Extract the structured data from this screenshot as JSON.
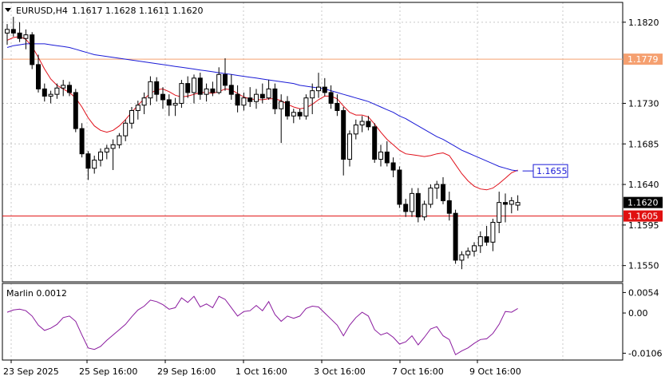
{
  "header": {
    "symbol_label": "EURUSD,H4",
    "ohlc": "1.1617 1.1628 1.1611 1.1620"
  },
  "indicator": {
    "label": "Marlin 0.0012"
  },
  "colors": {
    "candle": "#000000",
    "ma_fast": "#e0101a",
    "ma_slow": "#1a1ad6",
    "level_orange": "#f5a070",
    "level_red": "#e01010",
    "oscillator": "#8a1a9e",
    "grid": "#c8c8c8"
  },
  "chart_data": [
    {
      "type": "candlestick",
      "title": "EURUSD,H4",
      "ylim": [
        1.1532,
        1.1842
      ],
      "y_ticks": [
        "1.1820",
        "1.1730",
        "1.1685",
        "1.1640",
        "1.1595",
        "1.1550"
      ],
      "x_ticks": [
        "23 Sep 2025",
        "25 Sep 16:00",
        "29 Sep 16:00",
        "1 Oct 16:00",
        "3 Oct 16:00",
        "7 Oct 16:00",
        "9 Oct 16:00"
      ],
      "levels": [
        {
          "label": "1.1779",
          "value": 1.1779,
          "color": "#f5a070"
        },
        {
          "label": "1.1605",
          "value": 1.1605,
          "color": "#e01010"
        }
      ],
      "price_tags": [
        {
          "label": "1.1620",
          "value": 1.162,
          "style": "dark"
        },
        {
          "label": "1.1655",
          "value": 1.1655,
          "style": "blue-box"
        }
      ],
      "candles": [
        [
          1.1808,
          1.1818,
          1.1795,
          1.1812
        ],
        [
          1.1812,
          1.1826,
          1.1804,
          1.1808
        ],
        [
          1.1808,
          1.182,
          1.1798,
          1.1802
        ],
        [
          1.1802,
          1.1812,
          1.179,
          1.1806
        ],
        [
          1.1806,
          1.1809,
          1.1768,
          1.1773
        ],
        [
          1.1773,
          1.1784,
          1.1742,
          1.1746
        ],
        [
          1.1746,
          1.1752,
          1.1732,
          1.1738
        ],
        [
          1.1738,
          1.1744,
          1.173,
          1.174
        ],
        [
          1.174,
          1.1752,
          1.1735,
          1.1747
        ],
        [
          1.1747,
          1.1756,
          1.1738,
          1.175
        ],
        [
          1.175,
          1.1754,
          1.1738,
          1.1742
        ],
        [
          1.1742,
          1.1746,
          1.1698,
          1.1702
        ],
        [
          1.1702,
          1.1708,
          1.167,
          1.1674
        ],
        [
          1.1674,
          1.1677,
          1.1645,
          1.1658
        ],
        [
          1.1658,
          1.1672,
          1.1652,
          1.1667
        ],
        [
          1.1667,
          1.168,
          1.166,
          1.1676
        ],
        [
          1.1676,
          1.1684,
          1.1668,
          1.168
        ],
        [
          1.168,
          1.169,
          1.1656,
          1.1684
        ],
        [
          1.1684,
          1.1697,
          1.168,
          1.1694
        ],
        [
          1.1694,
          1.1712,
          1.1688,
          1.1708
        ],
        [
          1.1708,
          1.1726,
          1.1702,
          1.1722
        ],
        [
          1.1722,
          1.1733,
          1.1712,
          1.1728
        ],
        [
          1.1728,
          1.1742,
          1.1718,
          1.1736
        ],
        [
          1.1736,
          1.176,
          1.1728,
          1.1754
        ],
        [
          1.1754,
          1.1759,
          1.1732,
          1.174
        ],
        [
          1.174,
          1.1748,
          1.1724,
          1.1734
        ],
        [
          1.1734,
          1.174,
          1.1716,
          1.1728
        ],
        [
          1.1728,
          1.1736,
          1.1716,
          1.173
        ],
        [
          1.173,
          1.1756,
          1.1725,
          1.1752
        ],
        [
          1.1752,
          1.176,
          1.1736,
          1.1742
        ],
        [
          1.1742,
          1.1762,
          1.173,
          1.1758
        ],
        [
          1.1758,
          1.1764,
          1.1734,
          1.174
        ],
        [
          1.174,
          1.1752,
          1.1732,
          1.1746
        ],
        [
          1.1746,
          1.1754,
          1.1738,
          1.1742
        ],
        [
          1.1742,
          1.177,
          1.174,
          1.1762
        ],
        [
          1.1762,
          1.178,
          1.1744,
          1.175
        ],
        [
          1.175,
          1.1762,
          1.1734,
          1.174
        ],
        [
          1.174,
          1.175,
          1.172,
          1.1728
        ],
        [
          1.1728,
          1.1742,
          1.1722,
          1.1736
        ],
        [
          1.1736,
          1.1748,
          1.1726,
          1.1732
        ],
        [
          1.1732,
          1.1746,
          1.1724,
          1.174
        ],
        [
          1.174,
          1.1752,
          1.173,
          1.1736
        ],
        [
          1.1736,
          1.1756,
          1.1734,
          1.1746
        ],
        [
          1.1746,
          1.1752,
          1.1718,
          1.1724
        ],
        [
          1.1724,
          1.174,
          1.1686,
          1.1732
        ],
        [
          1.1732,
          1.1738,
          1.1712,
          1.1716
        ],
        [
          1.1716,
          1.1724,
          1.1708,
          1.172
        ],
        [
          1.172,
          1.1724,
          1.1712,
          1.1716
        ],
        [
          1.1716,
          1.174,
          1.1712,
          1.1736
        ],
        [
          1.1736,
          1.1752,
          1.1718,
          1.1744
        ],
        [
          1.1744,
          1.1764,
          1.1736,
          1.1748
        ],
        [
          1.1748,
          1.1758,
          1.1738,
          1.1742
        ],
        [
          1.1742,
          1.175,
          1.1724,
          1.173
        ],
        [
          1.173,
          1.174,
          1.1716,
          1.1722
        ],
        [
          1.1722,
          1.1726,
          1.165,
          1.1668
        ],
        [
          1.1668,
          1.17,
          1.166,
          1.1696
        ],
        [
          1.1696,
          1.1712,
          1.169,
          1.1706
        ],
        [
          1.1706,
          1.1716,
          1.1698,
          1.171
        ],
        [
          1.171,
          1.1716,
          1.17,
          1.1704
        ],
        [
          1.1704,
          1.1708,
          1.1664,
          1.1668
        ],
        [
          1.1668,
          1.1684,
          1.166,
          1.1676
        ],
        [
          1.1676,
          1.1688,
          1.166,
          1.1664
        ],
        [
          1.1664,
          1.167,
          1.1648,
          1.1656
        ],
        [
          1.1656,
          1.166,
          1.1614,
          1.1618
        ],
        [
          1.1618,
          1.1624,
          1.1604,
          1.161
        ],
        [
          1.161,
          1.1636,
          1.1604,
          1.163
        ],
        [
          1.163,
          1.1636,
          1.1598,
          1.1604
        ],
        [
          1.1604,
          1.1622,
          1.16,
          1.1618
        ],
        [
          1.1618,
          1.164,
          1.1614,
          1.1636
        ],
        [
          1.1636,
          1.1644,
          1.1624,
          1.164
        ],
        [
          1.164,
          1.1648,
          1.1618,
          1.1622
        ],
        [
          1.1622,
          1.1632,
          1.16,
          1.1608
        ],
        [
          1.1608,
          1.1612,
          1.1552,
          1.1556
        ],
        [
          1.1556,
          1.1566,
          1.1546,
          1.1562
        ],
        [
          1.1562,
          1.157,
          1.1558,
          1.1566
        ],
        [
          1.1566,
          1.1576,
          1.156,
          1.1572
        ],
        [
          1.1572,
          1.1588,
          1.1564,
          1.1582
        ],
        [
          1.1582,
          1.1594,
          1.1572,
          1.1576
        ],
        [
          1.1576,
          1.1602,
          1.1566,
          1.1598
        ],
        [
          1.1598,
          1.1632,
          1.1586,
          1.162
        ],
        [
          1.162,
          1.163,
          1.1598,
          1.1618
        ],
        [
          1.1618,
          1.1626,
          1.1608,
          1.1622
        ],
        [
          1.1617,
          1.1628,
          1.1611,
          1.162
        ]
      ],
      "series": [
        {
          "kind": "ma_fast",
          "color": "#e0101a",
          "values": [
            1.18,
            1.1803,
            1.1804,
            1.1801,
            1.1793,
            1.1781,
            1.1768,
            1.1757,
            1.175,
            1.1746,
            1.1742,
            1.1736,
            1.1726,
            1.1714,
            1.1705,
            1.17,
            1.1698,
            1.17,
            1.1705,
            1.1712,
            1.172,
            1.1728,
            1.1735,
            1.1741,
            1.1745,
            1.1746,
            1.1743,
            1.1739,
            1.1737,
            1.1738,
            1.174,
            1.1742,
            1.1742,
            1.1741,
            1.1743,
            1.1746,
            1.1745,
            1.1741,
            1.1737,
            1.1735,
            1.1734,
            1.1734,
            1.1735,
            1.1735,
            1.1733,
            1.1729,
            1.1726,
            1.1724,
            1.1725,
            1.1729,
            1.1734,
            1.1738,
            1.1738,
            1.1735,
            1.1727,
            1.172,
            1.1717,
            1.1717,
            1.1715,
            1.1707,
            1.1698,
            1.169,
            1.1684,
            1.1678,
            1.1674,
            1.1673,
            1.1672,
            1.1671,
            1.1672,
            1.1674,
            1.1675,
            1.1672,
            1.1662,
            1.1652,
            1.1644,
            1.1638,
            1.1635,
            1.1634,
            1.1636,
            1.1641,
            1.1647,
            1.1653,
            1.1656
          ]
        },
        {
          "kind": "ma_slow",
          "color": "#1a1ad6",
          "values": [
            1.1792,
            1.1794,
            1.1795,
            1.1796,
            1.1796,
            1.1796,
            1.1796,
            1.1795,
            1.1794,
            1.1793,
            1.1792,
            1.179,
            1.1788,
            1.1786,
            1.1784,
            1.1783,
            1.1782,
            1.1781,
            1.178,
            1.1779,
            1.1778,
            1.1777,
            1.1776,
            1.1775,
            1.1774,
            1.1773,
            1.1772,
            1.1771,
            1.177,
            1.1769,
            1.1768,
            1.1767,
            1.1766,
            1.1765,
            1.1764,
            1.1763,
            1.1762,
            1.1761,
            1.176,
            1.1759,
            1.1758,
            1.1757,
            1.1756,
            1.1755,
            1.1754,
            1.1753,
            1.1752,
            1.175,
            1.1749,
            1.1748,
            1.1747,
            1.1746,
            1.1744,
            1.1742,
            1.174,
            1.1738,
            1.1736,
            1.1734,
            1.1732,
            1.1729,
            1.1726,
            1.1723,
            1.172,
            1.1716,
            1.1713,
            1.1709,
            1.1705,
            1.1701,
            1.1697,
            1.1693,
            1.169,
            1.1686,
            1.1682,
            1.1678,
            1.1675,
            1.1672,
            1.1669,
            1.1666,
            1.1663,
            1.166,
            1.1658,
            1.1656,
            1.1655
          ]
        }
      ]
    },
    {
      "type": "line",
      "title": "Marlin 0.0012",
      "ylim": [
        -0.0124,
        0.0078
      ],
      "y_ticks": [
        "0.0054",
        "0.00",
        "-0.0106"
      ],
      "series": [
        {
          "kind": "oscillator",
          "color": "#8a1a9e",
          "values": [
            0.0002,
            0.0008,
            0.001,
            0.0006,
            -0.0008,
            -0.0032,
            -0.0046,
            -0.004,
            -0.003,
            -0.0012,
            -0.0008,
            -0.0022,
            -0.0058,
            -0.0092,
            -0.0096,
            -0.0088,
            -0.0072,
            -0.0058,
            -0.0044,
            -0.003,
            -0.001,
            0.0008,
            0.0018,
            0.0034,
            0.003,
            0.0022,
            0.001,
            0.0014,
            0.004,
            0.0028,
            0.0044,
            0.0016,
            0.0024,
            0.0014,
            0.0044,
            0.0036,
            0.0014,
            -0.0008,
            0.0004,
            0.0006,
            0.002,
            0.0006,
            0.003,
            -0.0004,
            -0.0022,
            -0.0008,
            -0.0014,
            -0.0008,
            0.0012,
            0.0018,
            0.0016,
            0.0,
            -0.0016,
            -0.0032,
            -0.006,
            -0.0032,
            -0.0012,
            0.0002,
            -0.0008,
            -0.0044,
            -0.0058,
            -0.0052,
            -0.0064,
            -0.0082,
            -0.0076,
            -0.006,
            -0.0084,
            -0.0064,
            -0.0042,
            -0.0036,
            -0.006,
            -0.007,
            -0.011,
            -0.01,
            -0.0092,
            -0.008,
            -0.007,
            -0.0068,
            -0.0054,
            -0.003,
            0.0004,
            0.0002,
            0.0012
          ]
        }
      ]
    }
  ]
}
